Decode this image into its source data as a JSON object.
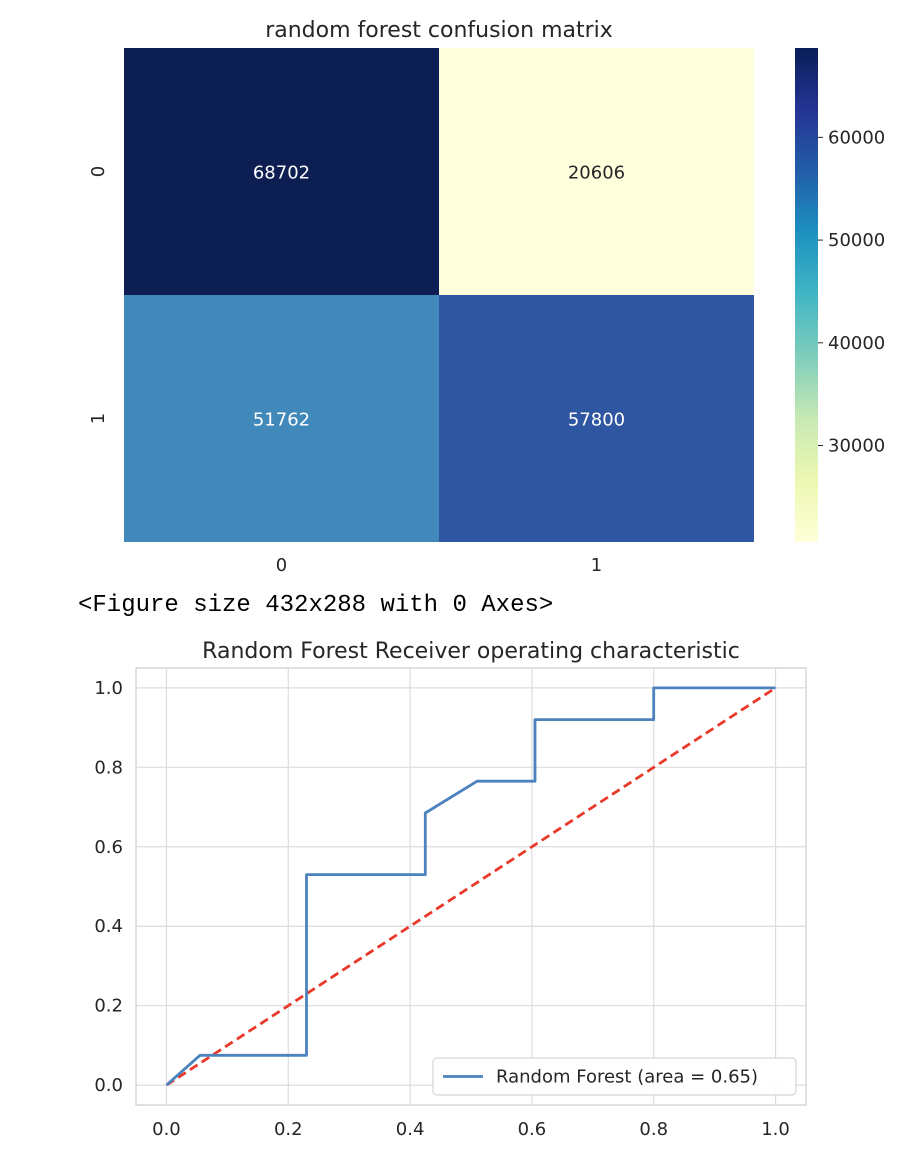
{
  "output_text": "<Figure size 432x288 with 0 Axes>",
  "chart_data": [
    {
      "type": "heatmap",
      "title": "random forest confusion matrix",
      "xlabel": "",
      "ylabel": "",
      "x_tick_labels": [
        "0",
        "1"
      ],
      "y_tick_labels": [
        "0",
        "1"
      ],
      "values": [
        [
          68702,
          20606
        ],
        [
          51762,
          57800
        ]
      ],
      "colormap": "YlGnBu",
      "colorbar": {
        "range": [
          20606,
          68702
        ],
        "ticks": [
          30000,
          40000,
          50000,
          60000
        ],
        "tick_labels": [
          "30000",
          "40000",
          "50000",
          "60000"
        ],
        "colors": [
          "#ffffd9",
          "#edf8b1",
          "#c7e9b4",
          "#7fcdbb",
          "#41b6c4",
          "#1d91c0",
          "#225ea8",
          "#253494",
          "#081d58"
        ]
      },
      "cell_colors": [
        [
          "#0c1e52",
          "#ffffde"
        ],
        [
          "#4189bb",
          "#2f56a0"
        ]
      ],
      "annotation_colors": [
        [
          "#ffffff",
          "#262626"
        ],
        [
          "#ffffff",
          "#ffffff"
        ]
      ],
      "grid": false
    },
    {
      "type": "line",
      "title": "Random Forest Receiver operating characteristic",
      "xlabel": "",
      "ylabel": "",
      "xlim": [
        -0.05,
        1.05
      ],
      "ylim": [
        -0.05,
        1.05
      ],
      "x_ticks": [
        0.0,
        0.2,
        0.4,
        0.6,
        0.8,
        1.0
      ],
      "x_tick_labels": [
        "0.0",
        "0.2",
        "0.4",
        "0.6",
        "0.8",
        "1.0"
      ],
      "y_ticks": [
        0.0,
        0.2,
        0.4,
        0.6,
        0.8,
        1.0
      ],
      "y_tick_labels": [
        "0.0",
        "0.2",
        "0.4",
        "0.6",
        "0.8",
        "1.0"
      ],
      "grid": true,
      "legend_position": "lower right",
      "series": [
        {
          "name": "Random Forest (area = 0.65)",
          "color": "#4c82be",
          "style": "solid",
          "x": [
            0.0,
            0.055,
            0.23,
            0.23,
            0.425,
            0.425,
            0.51,
            0.605,
            0.605,
            0.8,
            0.8,
            1.0
          ],
          "y": [
            0.0,
            0.075,
            0.075,
            0.53,
            0.53,
            0.685,
            0.765,
            0.765,
            0.92,
            0.92,
            1.0,
            1.0
          ]
        },
        {
          "name": "",
          "color": "#e8392a",
          "style": "dashed",
          "x": [
            0.0,
            1.0
          ],
          "y": [
            0.0,
            1.0
          ]
        }
      ]
    }
  ]
}
